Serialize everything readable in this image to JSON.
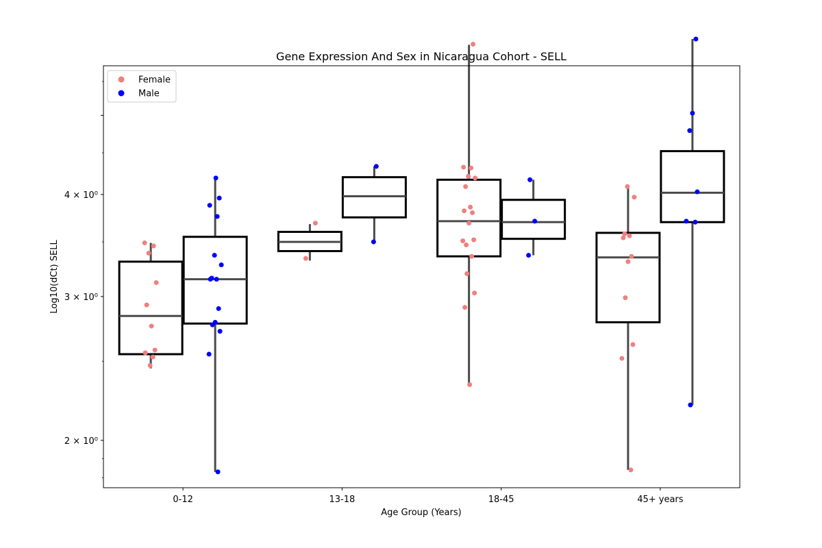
{
  "chart_data": {
    "type": "box",
    "title": "Gene Expression And Sex in Nicaragua Cohort - SELL",
    "xlabel": "Age Group (Years)",
    "ylabel": "Log10(dCt) SELL",
    "yscale": "log",
    "ylim": [
      1.75,
      5.75
    ],
    "yticks": [
      {
        "value": 2,
        "label": "2 × 10⁰"
      },
      {
        "value": 3,
        "label": "3 × 10⁰"
      },
      {
        "value": 4,
        "label": "4 × 10⁰"
      },
      {
        "value": 5,
        "label": ""
      }
    ],
    "categories": [
      "0-12",
      "13-18",
      "18-45",
      "45+ years"
    ],
    "legend": {
      "placement": "top-left"
    },
    "series": [
      {
        "name": "Female",
        "color": "#f08080",
        "box_color": "#000000",
        "boxes": [
          {
            "whislo": 2.45,
            "q1": 2.55,
            "med": 2.84,
            "q3": 3.31,
            "whishi": 3.49
          },
          {
            "whislo": 3.32,
            "q1": 3.41,
            "med": 3.5,
            "q3": 3.6,
            "whishi": 3.68
          },
          {
            "whislo": 2.34,
            "q1": 3.36,
            "med": 3.71,
            "q3": 4.17,
            "whishi": 6.1
          },
          {
            "whislo": 1.84,
            "q1": 2.79,
            "med": 3.35,
            "q3": 3.59,
            "whishi": 4.09
          }
        ],
        "points": [
          [
            3.49,
            3.46,
            3.39,
            3.12,
            2.93,
            2.76,
            2.58,
            2.56,
            2.53,
            2.47
          ],
          [
            3.69,
            3.34
          ],
          [
            6.11,
            4.32,
            4.31,
            4.21,
            4.19,
            4.09,
            3.86,
            3.82,
            3.8,
            3.69,
            3.47,
            3.52,
            3.51,
            3.36,
            3.2,
            3.03,
            2.91,
            2.34
          ],
          [
            4.09,
            3.97,
            3.58,
            3.56,
            3.54,
            3.36,
            3.31,
            2.99,
            2.62,
            2.52,
            1.84
          ]
        ]
      },
      {
        "name": "Male",
        "color": "#0000ff",
        "box_color": "#000000",
        "boxes": [
          {
            "whislo": 1.83,
            "q1": 2.78,
            "med": 3.15,
            "q3": 3.55,
            "whishi": 4.19
          },
          {
            "whislo": 3.5,
            "q1": 3.75,
            "med": 3.98,
            "q3": 4.2,
            "whishi": 4.33
          },
          {
            "whislo": 3.37,
            "q1": 3.53,
            "med": 3.7,
            "q3": 3.94,
            "whishi": 4.17
          },
          {
            "whislo": 2.21,
            "q1": 3.7,
            "med": 4.02,
            "q3": 4.52,
            "whishi": 6.2
          }
        ],
        "points": [
          [
            4.19,
            3.96,
            3.88,
            3.76,
            3.37,
            3.28,
            3.16,
            3.15,
            3.15,
            2.9,
            2.79,
            2.77,
            2.72,
            2.55,
            1.83
          ],
          [
            4.33,
            3.5
          ],
          [
            4.17,
            3.71,
            3.37
          ],
          [
            6.2,
            5.03,
            4.79,
            4.03,
            3.71,
            3.7,
            2.21
          ]
        ]
      }
    ]
  }
}
